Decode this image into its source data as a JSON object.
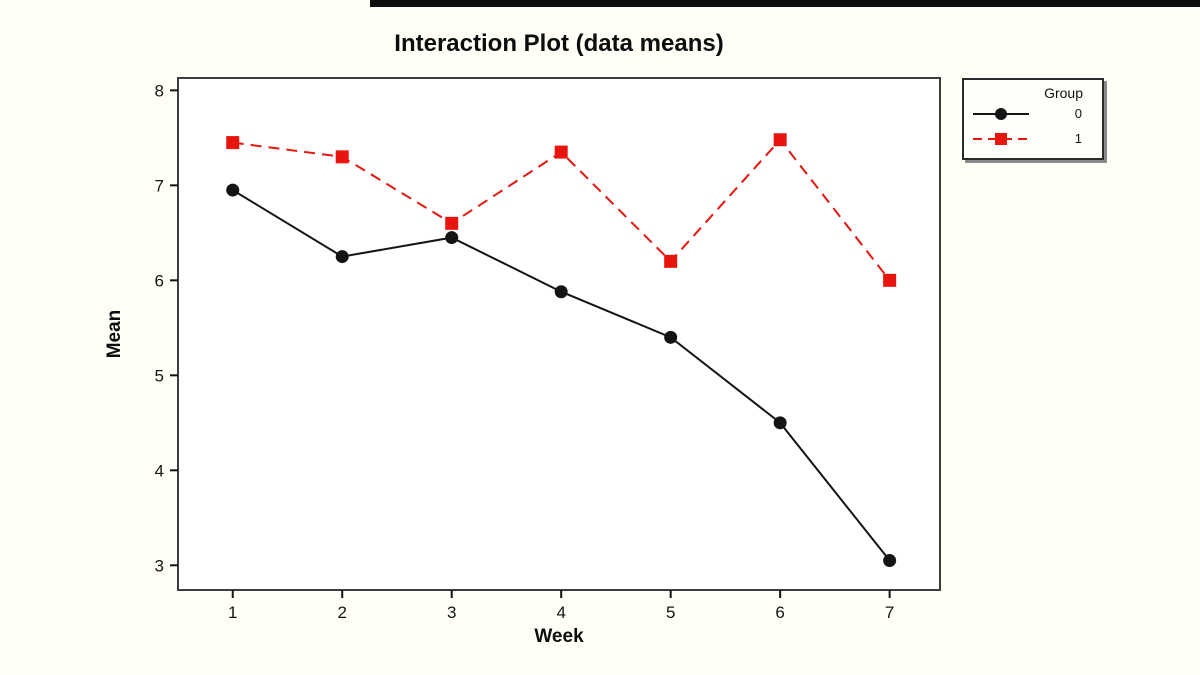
{
  "page": {
    "background": "#fffef7",
    "top_bar_color": "#0f0f0f"
  },
  "chart_data": {
    "type": "line",
    "title": "Interaction Plot (data means)",
    "xlabel": "Week",
    "ylabel": "Mean",
    "categories": [
      1,
      2,
      3,
      4,
      5,
      6,
      7
    ],
    "x_tick_labels": [
      "1",
      "2",
      "3",
      "4",
      "5",
      "6",
      "7"
    ],
    "y_tick_values": [
      8,
      7,
      6,
      5,
      4,
      3
    ],
    "y_tick_labels": [
      "8",
      "7",
      "6",
      "5",
      "4",
      "3"
    ],
    "xlim": [
      0.5,
      7.46
    ],
    "ylim": [
      2.74,
      8.13
    ],
    "grid": false,
    "frame_color": "#3d3d3d",
    "legend": {
      "title": "Group",
      "position": "outside-top-right"
    },
    "series": [
      {
        "name": "0",
        "color": "#141414",
        "line_style": "solid",
        "marker": "circle",
        "values": [
          6.95,
          6.25,
          6.45,
          5.88,
          5.4,
          4.5,
          3.05
        ]
      },
      {
        "name": "1",
        "color": "#e8150f",
        "line_style": "dashed",
        "marker": "square",
        "values": [
          7.45,
          7.3,
          6.6,
          7.35,
          6.2,
          7.48,
          6.0
        ]
      }
    ]
  }
}
